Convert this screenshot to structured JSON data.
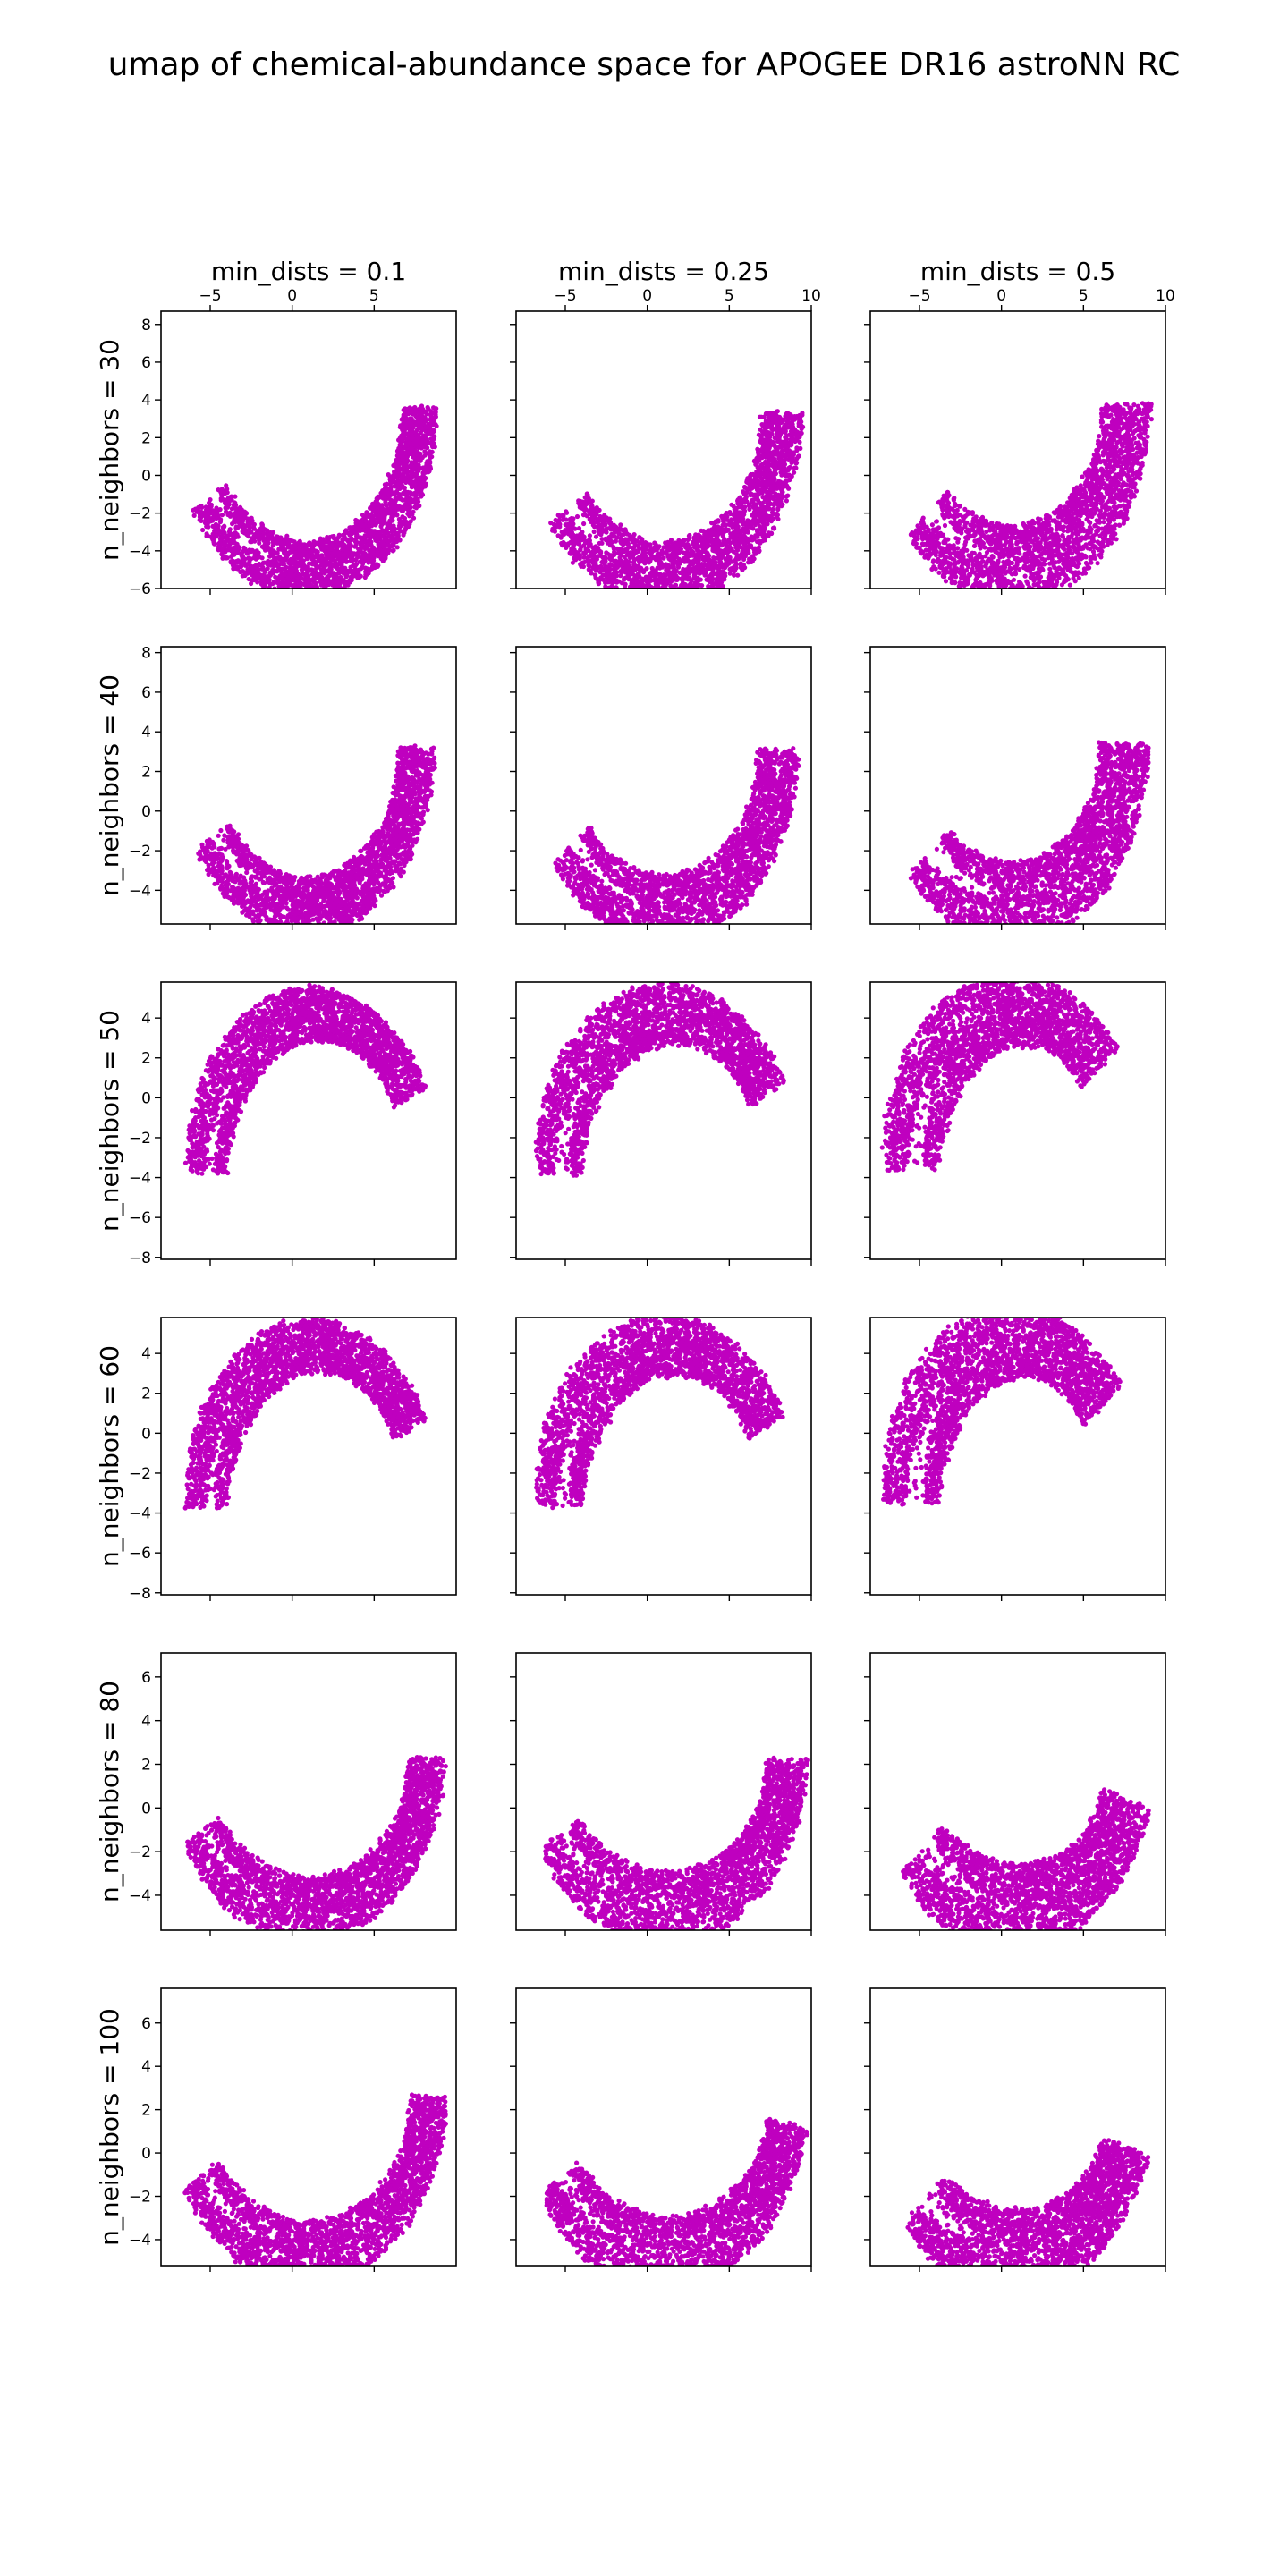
{
  "chart_data": {
    "type": "scatter",
    "title": "umap of chemical-abundance space for APOGEE DR16 astroNN RC",
    "grid": false,
    "marker_color": "#bf00bf",
    "column_titles": [
      "min_dists = 0.1",
      "min_dists = 0.25",
      "min_dists = 0.5"
    ],
    "row_labels": [
      "n_neighbors = 30",
      "n_neighbors = 40",
      "n_neighbors = 50",
      "n_neighbors = 60",
      "n_neighbors = 80",
      "n_neighbors = 100"
    ],
    "x_ticks": [
      {
        "values": [
          -5,
          0,
          5
        ],
        "labels": [
          "−5",
          "0",
          "5"
        ]
      },
      {
        "values": [
          -5,
          0,
          5,
          10
        ],
        "labels": [
          "−5",
          "0",
          "5",
          "10"
        ]
      },
      {
        "values": [
          -5,
          0,
          5,
          10
        ],
        "labels": [
          "−5",
          "0",
          "5",
          "10"
        ]
      }
    ],
    "xlim": [
      [
        -8,
        10
      ],
      [
        -8,
        10
      ],
      [
        -8,
        10
      ]
    ],
    "rows": [
      {
        "ylim": [
          -6,
          8.7
        ],
        "y_ticks": [
          -6,
          -4,
          -2,
          0,
          2,
          4,
          6,
          8
        ],
        "y_tick_labels": [
          "−6",
          "−4",
          "−2",
          "0",
          "2",
          "4",
          "6",
          "8"
        ]
      },
      {
        "ylim": [
          -5.7,
          8.3
        ],
        "y_ticks": [
          -4,
          -2,
          0,
          2,
          4,
          6,
          8
        ],
        "y_tick_labels": [
          "−4",
          "−2",
          "0",
          "2",
          "4",
          "6",
          "8"
        ]
      },
      {
        "ylim": [
          -8.1,
          5.8
        ],
        "y_ticks": [
          -8,
          -6,
          -4,
          -2,
          0,
          2,
          4
        ],
        "y_tick_labels": [
          "−8",
          "−6",
          "−4",
          "−2",
          "0",
          "2",
          "4"
        ]
      },
      {
        "ylim": [
          -8.1,
          5.8
        ],
        "y_ticks": [
          -8,
          -6,
          -4,
          -2,
          0,
          2,
          4
        ],
        "y_tick_labels": [
          "−8",
          "−6",
          "−4",
          "−2",
          "0",
          "2",
          "4"
        ]
      },
      {
        "ylim": [
          -5.6,
          7.1
        ],
        "y_ticks": [
          -4,
          -2,
          0,
          2,
          4,
          6
        ],
        "y_tick_labels": [
          "−4",
          "−2",
          "0",
          "2",
          "4",
          "6"
        ]
      },
      {
        "ylim": [
          -5.2,
          7.6
        ],
        "y_ticks": [
          -4,
          -2,
          0,
          2,
          4,
          6
        ],
        "y_tick_labels": [
          "−4",
          "−2",
          "0",
          "2",
          "4",
          "6"
        ]
      }
    ],
    "panels": [
      {
        "row": 0,
        "col": 0,
        "n_neighbors": 30,
        "min_dist": 0.1,
        "orientation": "U",
        "center": [
          0.8,
          3.6
        ],
        "radius": [
          7.0,
          8.6
        ],
        "thickness": 2.9,
        "gap": 0.7,
        "left_tip_x": -5.0,
        "right_tip_x": 8.8
      },
      {
        "row": 0,
        "col": 1,
        "n_neighbors": 30,
        "min_dist": 0.25,
        "orientation": "U",
        "center": [
          1.0,
          3.3
        ],
        "radius": [
          7.2,
          8.5
        ],
        "thickness": 3.3,
        "gap": 0.9,
        "left_tip_x": -4.8,
        "right_tip_x": 8.4
      },
      {
        "row": 0,
        "col": 2,
        "n_neighbors": 30,
        "min_dist": 0.5,
        "orientation": "U",
        "center": [
          0.6,
          3.8
        ],
        "radius": [
          7.0,
          8.5
        ],
        "thickness": 4.0,
        "gap": 1.2,
        "left_tip_x": -4.5,
        "right_tip_x": 7.6
      },
      {
        "row": 1,
        "col": 0,
        "n_neighbors": 40,
        "min_dist": 0.1,
        "orientation": "U",
        "center": [
          0.8,
          3.2
        ],
        "radius": [
          6.8,
          8.0
        ],
        "thickness": 2.9,
        "gap": 0.7,
        "left_tip_x": -4.8,
        "right_tip_x": 8.8
      },
      {
        "row": 1,
        "col": 1,
        "n_neighbors": 40,
        "min_dist": 0.25,
        "orientation": "U",
        "center": [
          1.0,
          3.1
        ],
        "radius": [
          7.0,
          8.0
        ],
        "thickness": 3.3,
        "gap": 0.9,
        "left_tip_x": -4.6,
        "right_tip_x": 8.2
      },
      {
        "row": 1,
        "col": 2,
        "n_neighbors": 40,
        "min_dist": 0.5,
        "orientation": "U",
        "center": [
          0.6,
          3.4
        ],
        "radius": [
          6.9,
          8.0
        ],
        "thickness": 4.0,
        "gap": 1.2,
        "left_tip_x": -4.4,
        "right_tip_x": 7.6
      },
      {
        "row": 2,
        "col": 0,
        "n_neighbors": 50,
        "min_dist": 0.1,
        "orientation": "cap",
        "center": [
          1.4,
          -3.8
        ],
        "radius": [
          6.6,
          8.0
        ],
        "thickness": 2.9,
        "gap": 0.7,
        "left_tip_x": -6.5,
        "right_tip_x": 7.2
      },
      {
        "row": 2,
        "col": 1,
        "n_neighbors": 50,
        "min_dist": 0.25,
        "orientation": "cap",
        "center": [
          1.4,
          -3.8
        ],
        "radius": [
          6.8,
          8.0
        ],
        "thickness": 3.3,
        "gap": 0.9,
        "left_tip_x": -6.3,
        "right_tip_x": 7.3
      },
      {
        "row": 2,
        "col": 2,
        "n_neighbors": 50,
        "min_dist": 0.5,
        "orientation": "cap",
        "center": [
          1.0,
          -3.6
        ],
        "radius": [
          6.5,
          8.0
        ],
        "thickness": 4.0,
        "gap": 1.2,
        "left_tip_x": -6.0,
        "right_tip_x": 6.0
      },
      {
        "row": 3,
        "col": 0,
        "n_neighbors": 60,
        "min_dist": 0.1,
        "orientation": "cap",
        "center": [
          1.4,
          -3.7
        ],
        "radius": [
          6.6,
          8.1
        ],
        "thickness": 2.9,
        "gap": 0.7,
        "left_tip_x": -6.6,
        "right_tip_x": 7.2
      },
      {
        "row": 3,
        "col": 1,
        "n_neighbors": 60,
        "min_dist": 0.25,
        "orientation": "cap",
        "center": [
          1.4,
          -3.7
        ],
        "radius": [
          6.8,
          8.1
        ],
        "thickness": 3.3,
        "gap": 0.9,
        "left_tip_x": -6.4,
        "right_tip_x": 7.3
      },
      {
        "row": 3,
        "col": 2,
        "n_neighbors": 60,
        "min_dist": 0.5,
        "orientation": "cap",
        "center": [
          1.0,
          -3.5
        ],
        "radius": [
          6.5,
          8.1
        ],
        "thickness": 4.0,
        "gap": 1.2,
        "left_tip_x": -5.8,
        "right_tip_x": 6.2
      },
      {
        "row": 4,
        "col": 0,
        "n_neighbors": 80,
        "min_dist": 0.1,
        "orientation": "U",
        "center": [
          0.9,
          2.3
        ],
        "radius": [
          7.3,
          6.9
        ],
        "thickness": 2.9,
        "gap": 0.7,
        "left_tip_x": -5.5,
        "right_tip_x": 8.8
      },
      {
        "row": 4,
        "col": 1,
        "n_neighbors": 80,
        "min_dist": 0.25,
        "orientation": "U",
        "center": [
          1.1,
          2.2
        ],
        "radius": [
          7.4,
          6.8
        ],
        "thickness": 3.3,
        "gap": 0.9,
        "left_tip_x": -5.3,
        "right_tip_x": 8.5
      },
      {
        "row": 4,
        "col": 2,
        "n_neighbors": 80,
        "min_dist": 0.5,
        "orientation": "U",
        "center": [
          0.8,
          2.4
        ],
        "radius": [
          7.1,
          7.0
        ],
        "thickness": 4.0,
        "gap": 1.2,
        "left_tip_x": -4.8,
        "right_tip_x": 7.6
      },
      {
        "row": 5,
        "col": 0,
        "n_neighbors": 100,
        "min_dist": 0.1,
        "orientation": "U",
        "center": [
          0.9,
          2.6
        ],
        "radius": [
          7.4,
          7.2
        ],
        "thickness": 2.9,
        "gap": 0.7,
        "left_tip_x": -5.5,
        "right_tip_x": 8.8
      },
      {
        "row": 5,
        "col": 1,
        "n_neighbors": 100,
        "min_dist": 0.25,
        "orientation": "U",
        "center": [
          1.1,
          2.5
        ],
        "radius": [
          7.5,
          7.1
        ],
        "thickness": 3.3,
        "gap": 0.9,
        "left_tip_x": -5.3,
        "right_tip_x": 8.5
      },
      {
        "row": 5,
        "col": 2,
        "n_neighbors": 100,
        "min_dist": 0.5,
        "orientation": "U",
        "center": [
          0.8,
          2.6
        ],
        "radius": [
          7.2,
          7.2
        ],
        "thickness": 4.0,
        "gap": 1.2,
        "left_tip_x": -4.6,
        "right_tip_x": 7.6
      }
    ]
  }
}
